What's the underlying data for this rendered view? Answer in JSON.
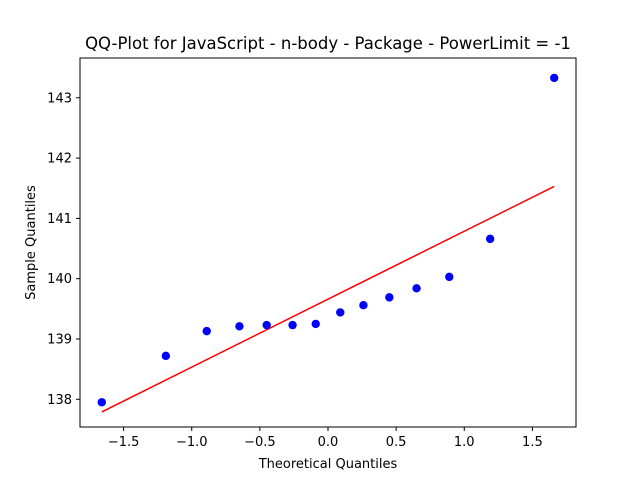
{
  "chart_data": {
    "type": "scatter",
    "title": "QQ-Plot for JavaScript - n-body - Package - PowerLimit = -1",
    "xlabel": "Theoretical Quantiles",
    "ylabel": "Sample Quantiles",
    "xlim": [
      -1.82,
      1.82
    ],
    "ylim": [
      137.54,
      143.66
    ],
    "xticks": [
      -1.5,
      -1.0,
      -0.5,
      0.0,
      0.5,
      1.0,
      1.5
    ],
    "xtick_labels": [
      "−1.5",
      "−1.0",
      "−0.5",
      "0.0",
      "0.5",
      "1.0",
      "1.5"
    ],
    "yticks": [
      138,
      139,
      140,
      141,
      142,
      143
    ],
    "ytick_labels": [
      "138",
      "139",
      "140",
      "141",
      "142",
      "143"
    ],
    "grid": false,
    "series": [
      {
        "kind": "points",
        "color": "#0000ff",
        "x": [
          -1.66,
          -1.19,
          -0.89,
          -0.65,
          -0.45,
          -0.26,
          -0.09,
          0.09,
          0.26,
          0.45,
          0.65,
          0.89,
          1.19,
          1.66
        ],
        "y": [
          137.95,
          138.72,
          139.13,
          139.21,
          139.23,
          139.23,
          139.25,
          139.44,
          139.56,
          139.69,
          139.84,
          140.03,
          140.66,
          143.33
        ]
      },
      {
        "kind": "line",
        "color": "#ff0000",
        "x": [
          -1.66,
          1.66
        ],
        "y": [
          137.79,
          141.53
        ]
      }
    ]
  }
}
